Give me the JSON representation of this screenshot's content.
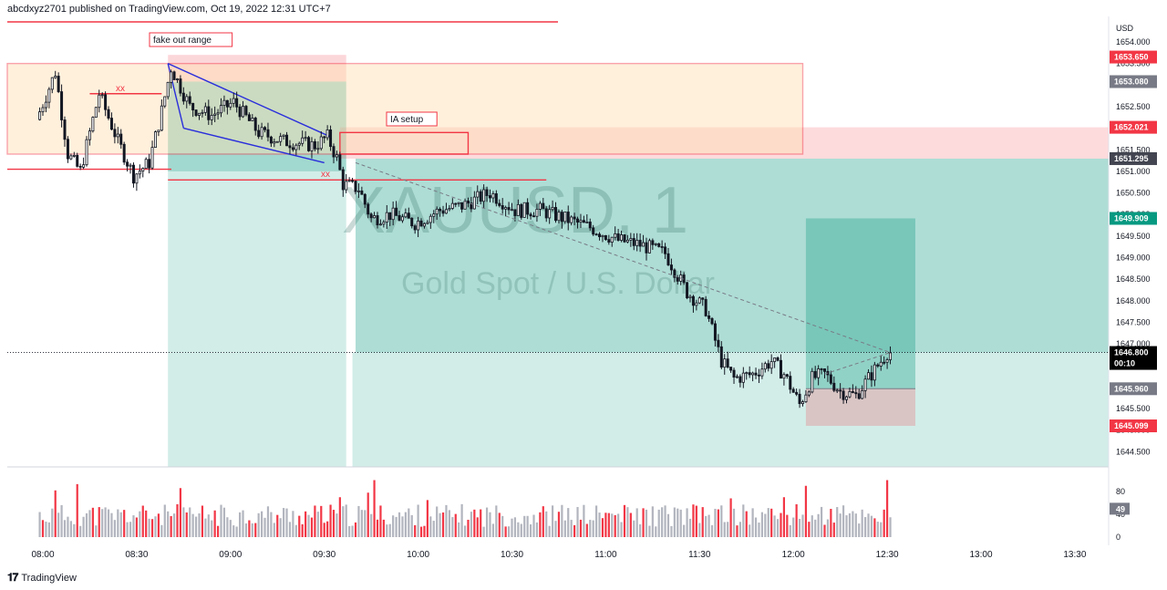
{
  "header": {
    "publisher_line": "abcdxyz2701 published on TradingView.com, Oct 19, 2022 12:31 UTC+7"
  },
  "footer": {
    "logo_text": "TradingView"
  },
  "watermark": {
    "symbol": "XAUUSD, 1",
    "description": "Gold Spot / U.S. Dollar"
  },
  "chart_data": {
    "type": "candlestick",
    "title": "XAUUSD, 1",
    "subtitle": "Gold Spot / U.S. Dollar",
    "currency_label": "USD",
    "interval_minutes": 1,
    "y_ticks": [
      1654.0,
      1653.5,
      1653.0,
      1652.5,
      1652.0,
      1651.5,
      1651.0,
      1650.5,
      1650.0,
      1649.5,
      1649.0,
      1648.5,
      1648.0,
      1647.5,
      1647.0,
      1646.5,
      1646.0,
      1645.5,
      1645.0,
      1644.5
    ],
    "y_tick_labels": [
      "1654.000",
      "1653.500",
      "1653.000",
      "1652.500",
      "1652.000",
      "1651.500",
      "1651.000",
      "1650.500",
      "1650.000",
      "1649.500",
      "1649.000",
      "1648.500",
      "1648.000",
      "1647.500",
      "1647.000",
      "1646.500",
      "1646.000",
      "1645.500",
      "1645.000",
      "1644.500"
    ],
    "ylim": [
      1644.4,
      1654.4
    ],
    "x_ticks": [
      "08:00",
      "08:30",
      "09:00",
      "09:30",
      "10:00",
      "10:30",
      "11:00",
      "11:30",
      "12:00",
      "12:30",
      "13:00",
      "13:30"
    ],
    "price_tags": [
      {
        "label": "1653.650",
        "value": 1653.65,
        "color": "#f23645"
      },
      {
        "label": "1653.080",
        "value": 1653.08,
        "color": "#787b86"
      },
      {
        "label": "1652.021",
        "value": 1652.021,
        "color": "#f23645"
      },
      {
        "label": "1651.295",
        "value": 1651.295,
        "color": "#434651"
      },
      {
        "label": "1649.909",
        "value": 1649.909,
        "color": "#089981"
      },
      {
        "label": "1645.960",
        "value": 1645.96,
        "color": "#787b86"
      },
      {
        "label": "1645.099",
        "value": 1645.099,
        "color": "#f23645"
      }
    ],
    "last_price": {
      "label": "1646.800",
      "value": 1646.8,
      "countdown": "00:10",
      "color": "#000000"
    },
    "anchors": [
      [
        "07:59",
        1652.2
      ],
      [
        "08:05",
        1653.3
      ],
      [
        "08:09",
        1651.4
      ],
      [
        "08:13",
        1651.0
      ],
      [
        "08:19",
        1652.8
      ],
      [
        "08:25",
        1651.7
      ],
      [
        "08:30",
        1650.9
      ],
      [
        "08:35",
        1651.2
      ],
      [
        "08:39",
        1652.4
      ],
      [
        "08:42",
        1653.4
      ],
      [
        "08:48",
        1652.5
      ],
      [
        "08:55",
        1652.3
      ],
      [
        "09:02",
        1652.6
      ],
      [
        "09:10",
        1651.9
      ],
      [
        "09:18",
        1651.7
      ],
      [
        "09:28",
        1651.6
      ],
      [
        "09:32",
        1651.8
      ],
      [
        "09:35",
        1651.3
      ],
      [
        "09:37",
        1650.7
      ],
      [
        "09:42",
        1650.6
      ],
      [
        "09:46",
        1649.9
      ],
      [
        "09:52",
        1650.0
      ],
      [
        "10:00",
        1649.8
      ],
      [
        "10:08",
        1650.1
      ],
      [
        "10:15",
        1650.2
      ],
      [
        "10:24",
        1650.5
      ],
      [
        "10:32",
        1650.1
      ],
      [
        "10:40",
        1650.1
      ],
      [
        "10:48",
        1649.9
      ],
      [
        "10:56",
        1649.7
      ],
      [
        "11:05",
        1649.4
      ],
      [
        "11:12",
        1649.3
      ],
      [
        "11:20",
        1649.1
      ],
      [
        "11:27",
        1648.2
      ],
      [
        "11:33",
        1647.8
      ],
      [
        "11:38",
        1646.6
      ],
      [
        "11:42",
        1646.2
      ],
      [
        "11:48",
        1646.3
      ],
      [
        "11:54",
        1646.6
      ],
      [
        "11:58",
        1646.3
      ],
      [
        "12:03",
        1645.6
      ],
      [
        "12:07",
        1646.2
      ],
      [
        "12:11",
        1646.3
      ],
      [
        "12:16",
        1645.9
      ],
      [
        "12:21",
        1645.8
      ],
      [
        "12:26",
        1646.3
      ],
      [
        "12:31",
        1646.8
      ]
    ],
    "volume": {
      "y_ticks": [
        80,
        40,
        0
      ],
      "current_label": "49",
      "current_value": 49,
      "spikes": [
        [
          "08:04",
          82
        ],
        [
          "08:11",
          93
        ],
        [
          "08:44",
          86
        ],
        [
          "09:35",
          70
        ],
        [
          "09:44",
          78
        ],
        [
          "09:46",
          100
        ],
        [
          "10:03",
          65
        ],
        [
          "11:40",
          68
        ],
        [
          "11:57",
          70
        ],
        [
          "12:04",
          90
        ],
        [
          "12:30",
          100
        ]
      ],
      "up_color": "#b2b5be",
      "down_color": "#f23645"
    },
    "annotations": [
      {
        "label": "fake out range"
      },
      {
        "label": "IA setup"
      },
      {
        "label": "xx",
        "color": "#f23645"
      },
      {
        "label": "xx",
        "color": "#f23645"
      }
    ],
    "colors": {
      "candle": "#131722",
      "rectangle_border": "#f23645",
      "wedge": "#2a2edb",
      "profit_zone": "#089981",
      "stop_zone": "#f23645"
    }
  }
}
